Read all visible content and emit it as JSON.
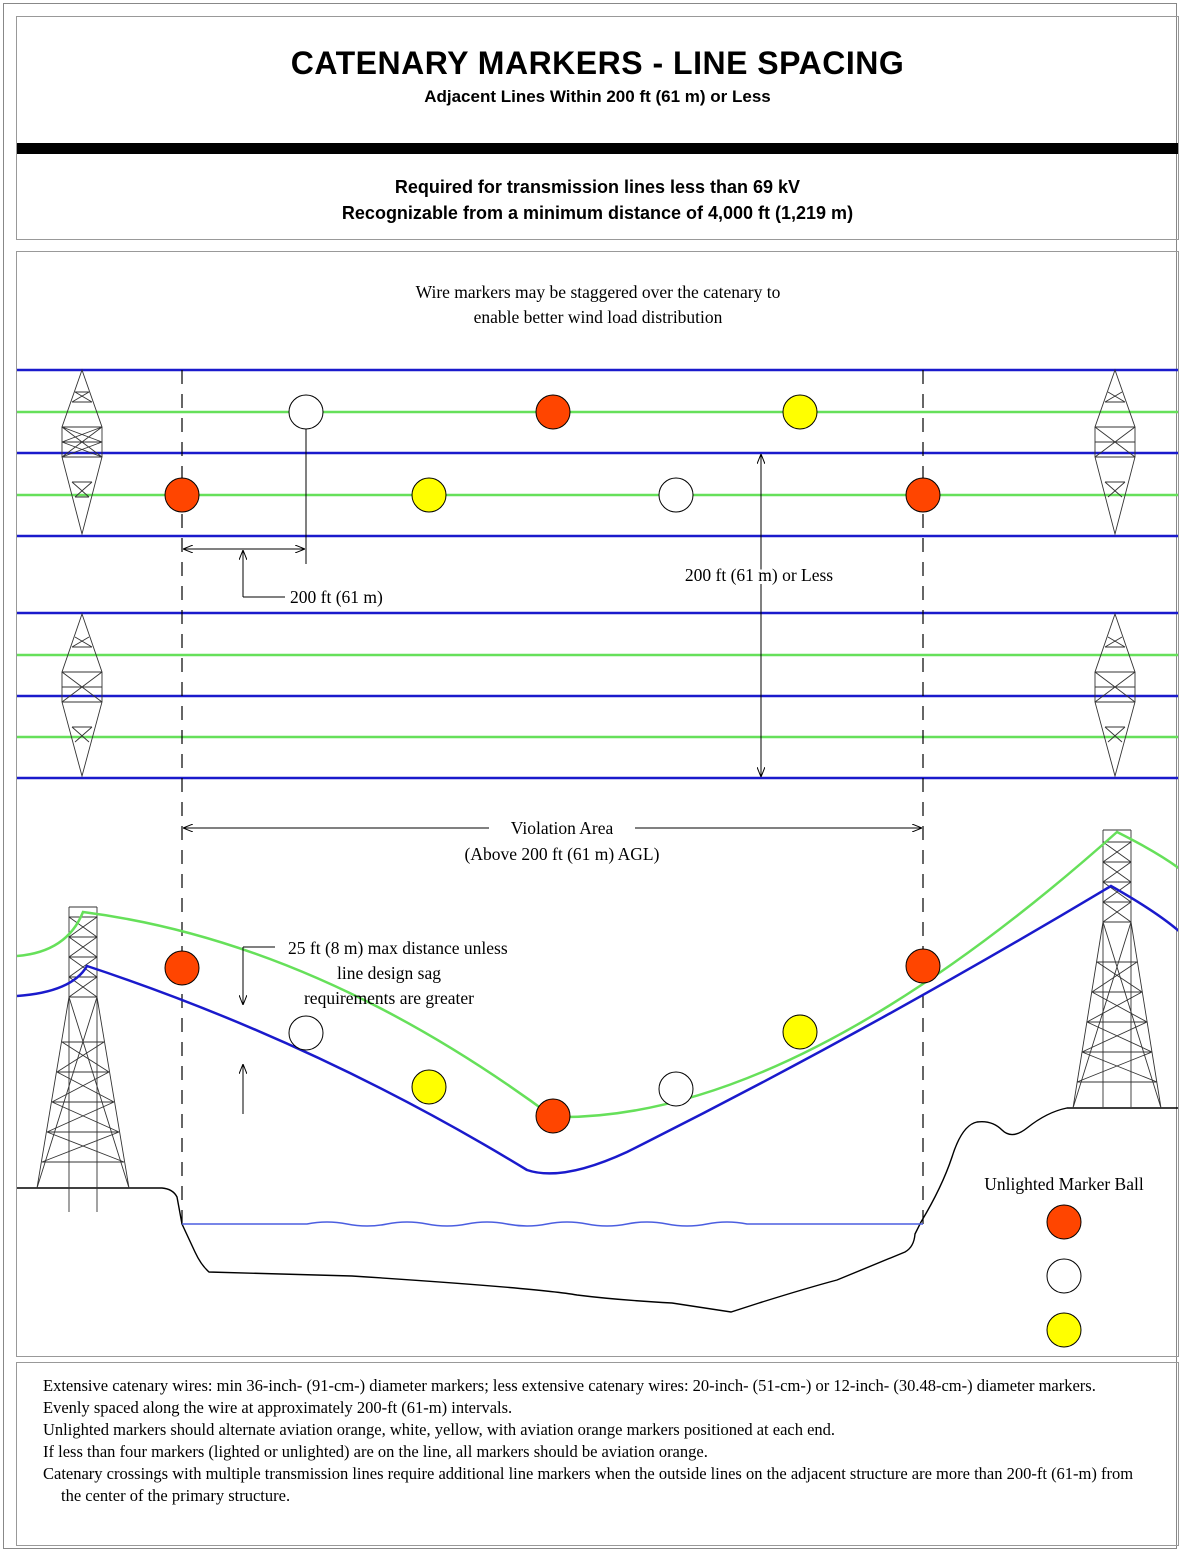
{
  "header": {
    "title": "CATENARY MARKERS - LINE SPACING",
    "subtitle": "Adjacent Lines Within 200 ft (61 m) or Less",
    "requirement_1": "Required for transmission lines less than 69 kV",
    "requirement_2": "Recognizable from a minimum distance of 4,000 ft (1,219 m)"
  },
  "diagram": {
    "stagger_note_line1": "Wire markers may be staggered over the catenary to",
    "stagger_note_line2": "enable better wind load distribution",
    "marker_spacing_label": "200 ft (61 m)",
    "line_spacing_label": "200 ft (61 m) or Less",
    "violation_area_label": "Violation Area",
    "violation_area_sublabel": "(Above 200 ft (61 m) AGL)",
    "sag_note_line1": "25 ft (8 m) max distance unless",
    "sag_note_line2": "line design sag",
    "sag_note_line3": "requirements are greater",
    "legend_title": "Unlighted Marker Ball",
    "colors": {
      "aviation_orange": "#ff4500",
      "white": "#ffffff",
      "yellow": "#ffff00",
      "conductor_green": "#66e05a",
      "conductor_blue": "#1a1acc",
      "water_blue": "#4b5ee0"
    },
    "legend_colors": [
      "aviation_orange",
      "white",
      "yellow"
    ]
  },
  "notes": [
    "Extensive catenary wires: min 36-inch- (91-cm-) diameter markers; less extensive catenary wires: 20-inch- (51-cm-) or 12-inch- (30.48-cm-) diameter markers.",
    "Evenly spaced along the wire at approximately 200-ft (61-m) intervals.",
    "Unlighted markers should alternate aviation orange, white, yellow, with aviation orange markers positioned at each end.",
    "If less than four markers (lighted or unlighted) are on the line, all markers should be aviation orange.",
    "Catenary crossings with multiple transmission lines require additional line markers when the outside lines on the adjacent structure are more than 200-ft (61-m) from the center of the primary structure."
  ]
}
